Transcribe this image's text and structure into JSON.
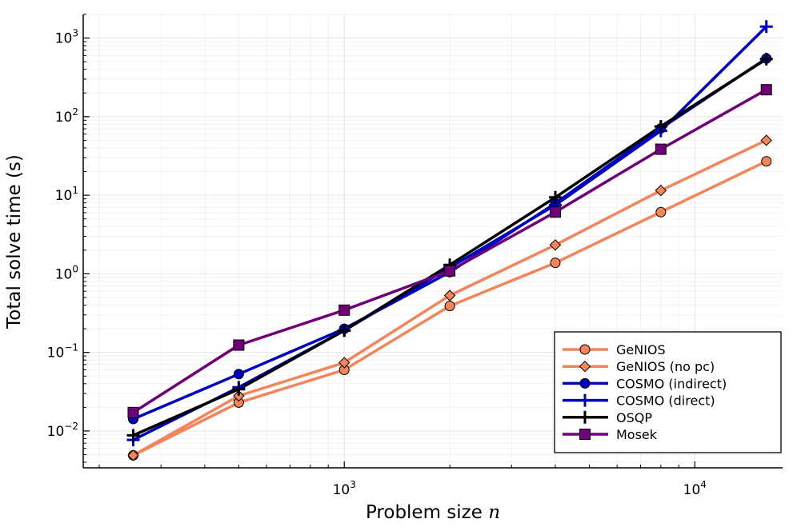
{
  "chart_data": {
    "type": "line",
    "xscale": "log",
    "yscale": "log",
    "xlabel": "Problem size",
    "xlabel_var": "n",
    "ylabel": "Total solve time (s)",
    "xlim": [
      180,
      17800
    ],
    "ylim": [
      0.0034,
      2000
    ],
    "grid": true,
    "legend_position": "bottom-right",
    "x_major_ticks": [
      {
        "value": 1000,
        "base": "10",
        "exp": "3"
      },
      {
        "value": 10000,
        "base": "10",
        "exp": "4"
      }
    ],
    "y_major_ticks": [
      {
        "value": 0.01,
        "base": "10",
        "exp": "−2"
      },
      {
        "value": 0.1,
        "base": "10",
        "exp": "−1"
      },
      {
        "value": 1,
        "base": "10",
        "exp": "0"
      },
      {
        "value": 10,
        "base": "10",
        "exp": "1"
      },
      {
        "value": 100,
        "base": "10",
        "exp": "2"
      },
      {
        "value": 1000,
        "base": "10",
        "exp": "3"
      }
    ],
    "x": [
      250,
      500,
      1000,
      2000,
      4000,
      8000,
      16000
    ],
    "series": [
      {
        "name": "GeNIOS",
        "color": "#f4845a",
        "marker": "circle",
        "values": [
          0.0049,
          0.023,
          0.06,
          0.39,
          1.38,
          6.1,
          27
        ]
      },
      {
        "name": "GeNIOS (no pc)",
        "color": "#f4845a",
        "marker": "diamond",
        "values": [
          0.0049,
          0.028,
          0.074,
          0.53,
          2.33,
          11.5,
          50
        ]
      },
      {
        "name": "COSMO (indirect)",
        "color": "#0000c3",
        "marker": "circle",
        "values": [
          0.0142,
          0.053,
          0.2,
          1.05,
          7.9,
          71,
          550
        ]
      },
      {
        "name": "COSMO (direct)",
        "color": "#0000c3",
        "marker": "plus",
        "values": [
          0.0077,
          0.036,
          0.19,
          1.2,
          7.5,
          66,
          1400
        ]
      },
      {
        "name": "OSQP",
        "color": "#000000",
        "marker": "plus",
        "values": [
          0.0088,
          0.034,
          0.19,
          1.3,
          9.4,
          75,
          540
        ]
      },
      {
        "name": "Mosek",
        "color": "#700078",
        "marker": "square",
        "values": [
          0.0172,
          0.124,
          0.345,
          1.09,
          6.1,
          38.5,
          220
        ]
      }
    ]
  }
}
